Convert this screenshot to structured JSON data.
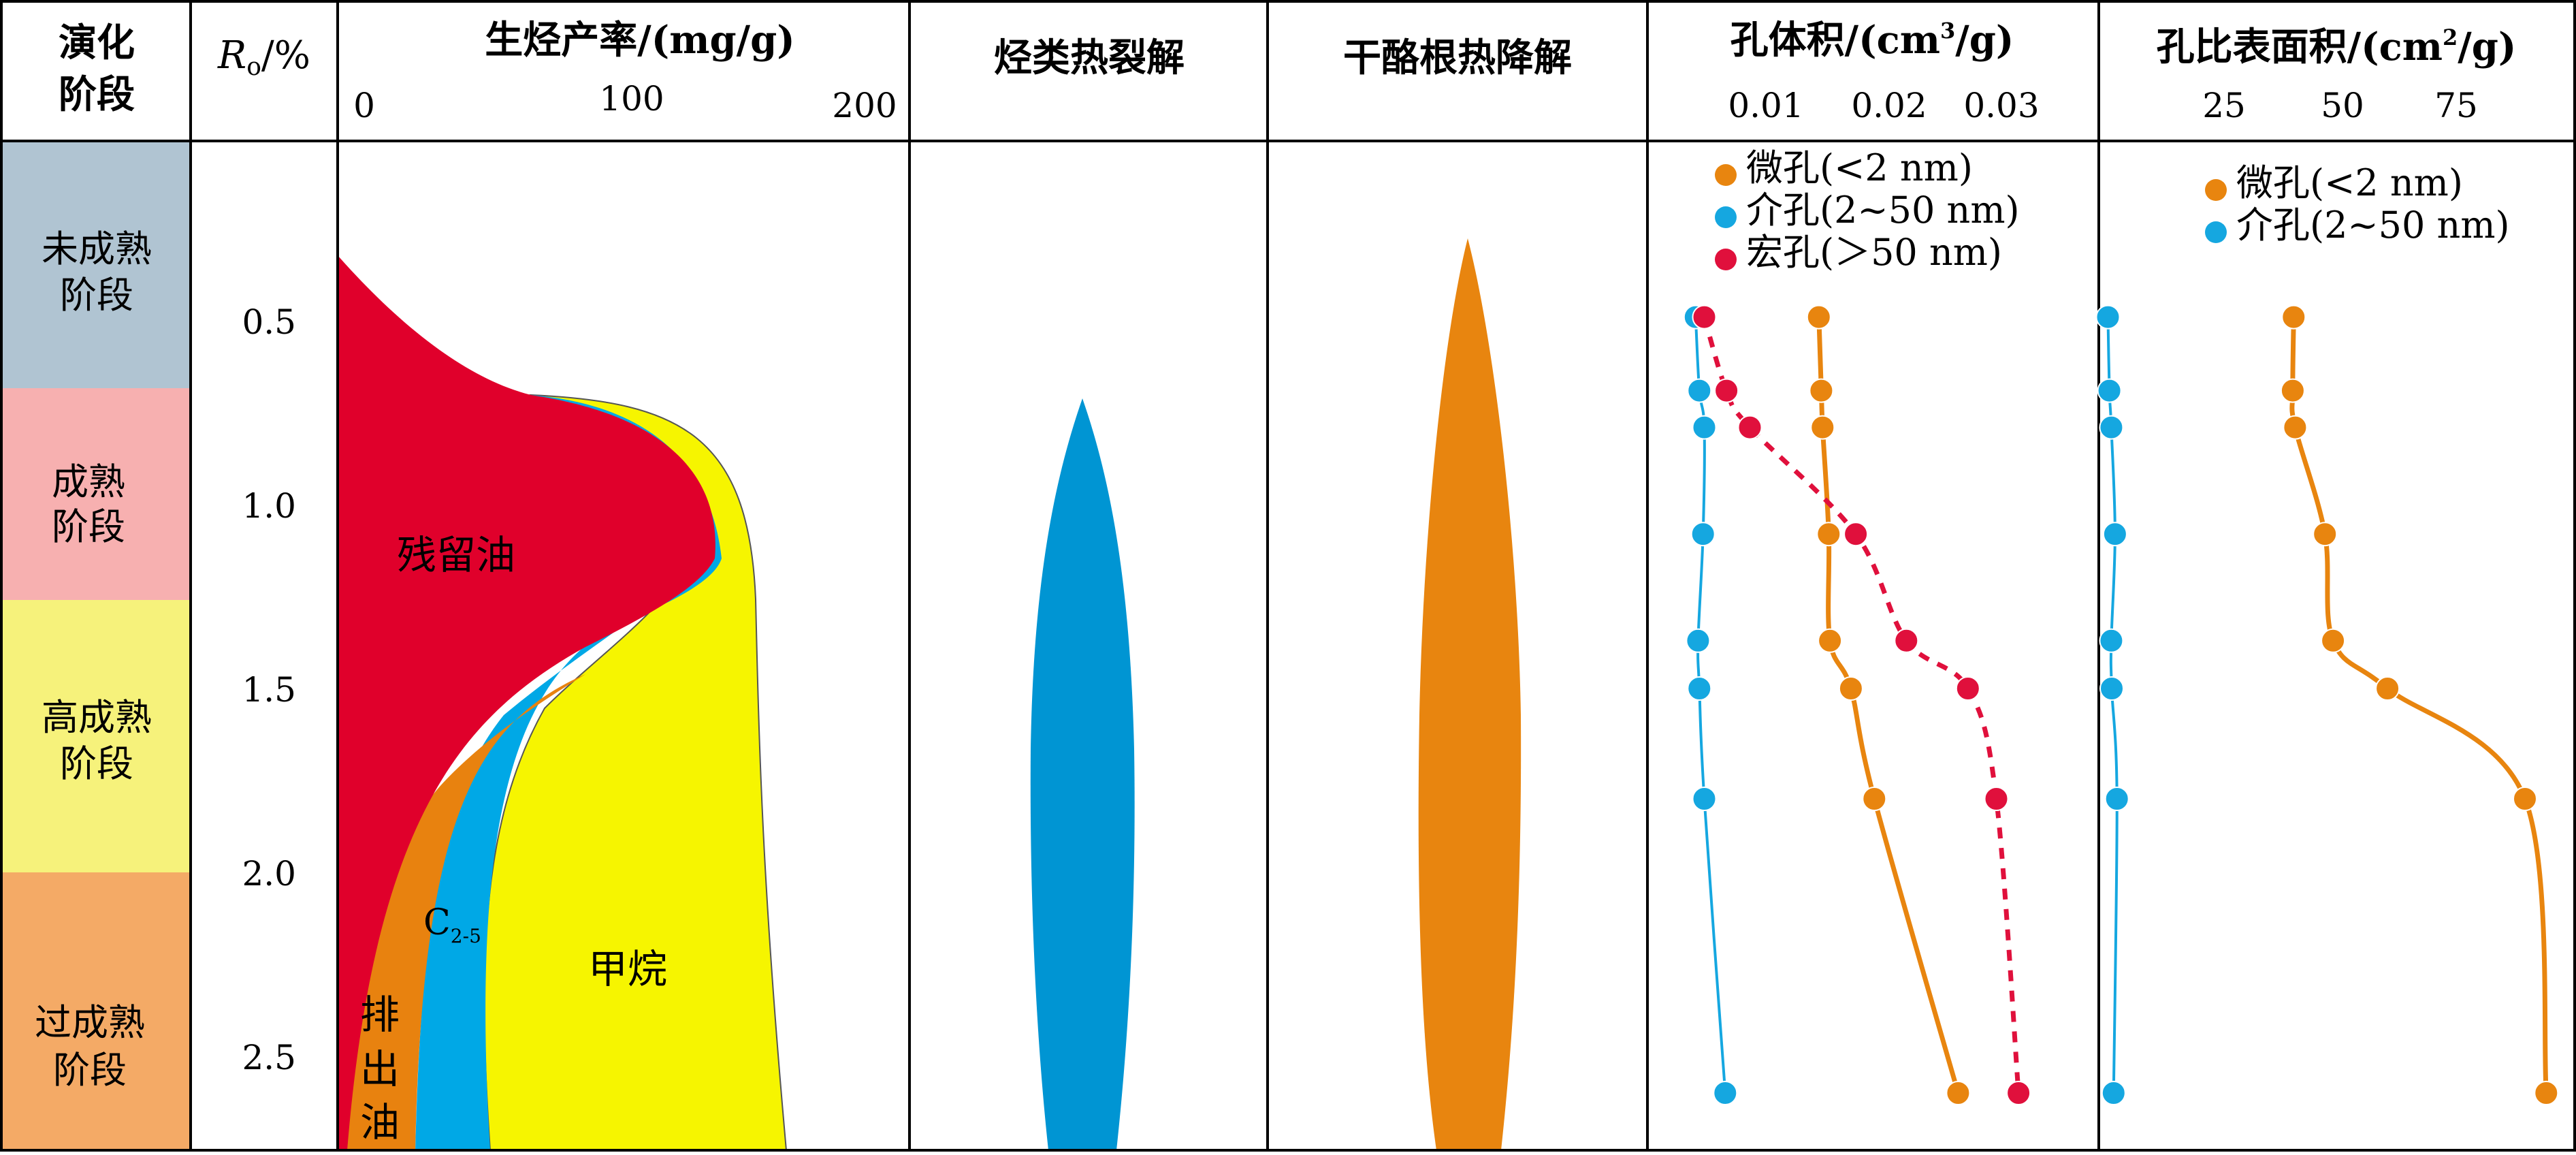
{
  "headers": {
    "stage": [
      "演化",
      "阶段"
    ],
    "ro": "R",
    "ro_sub": "o",
    "ro_unit": "/%",
    "yield": "生烃产率/(mg/g)",
    "cracking": "烃类热裂解",
    "kerogen": "干酪根热降解",
    "pore_volume": "孔体积/(cm",
    "pore_volume_sup": "3",
    "pore_volume_end": "/g)",
    "surface_area": "孔比表面积/(cm",
    "surface_area_sup": "2",
    "surface_area_end": "/g)"
  },
  "stages": [
    {
      "lines": [
        "未成熟",
        "阶段"
      ],
      "color": "#b0c4d2"
    },
    {
      "lines": [
        "成熟",
        "阶段"
      ],
      "color": "#f7b0b0"
    },
    {
      "lines": [
        "高成熟",
        "阶段"
      ],
      "color": "#f6f27b"
    },
    {
      "lines": [
        "过成熟",
        "阶段"
      ],
      "color": "#f4aa66"
    }
  ],
  "ro_ticks": [
    "0.5",
    "1.0",
    "1.5",
    "2.0",
    "2.5"
  ],
  "yield_ticks": [
    "0",
    "100",
    "200"
  ],
  "pv_ticks": [
    "0.01",
    "0.02",
    "0.03"
  ],
  "sa_ticks": [
    "25",
    "50",
    "75"
  ],
  "regions": {
    "residual_oil": "残留油",
    "methane": "甲烷",
    "c25": "C",
    "c25_sub": "2-5",
    "expelled": [
      "排",
      "出",
      "油"
    ]
  },
  "colors": {
    "residual_oil": "#e0002b",
    "methane": "#f6f500",
    "c25": "#00a8e6",
    "expelled": "#e8820f",
    "cracking": "#0095d3",
    "kerogen": "#e8850f",
    "micro": "#e8850f",
    "meso": "#15a7e0",
    "macro": "#e0103c"
  },
  "legend_pv": [
    "微孔(<2 nm)",
    "介孔(2~50 nm)",
    "宏孔(＞50 nm)"
  ],
  "legend_sa": [
    "微孔(<2 nm)",
    "介孔(2~50 nm)"
  ],
  "chart_data": [
    {
      "type": "line",
      "xlabel": "孔体积/(cm3/g)",
      "ylabel": "Ro/%",
      "ylim": [
        2.75,
        0.0
      ],
      "series": [
        {
          "name": "微孔(<2 nm)",
          "ro": [
            0.49,
            0.69,
            0.79,
            1.08,
            1.37,
            1.5,
            1.8,
            2.6
          ],
          "values": [
            0.0143,
            0.0145,
            0.0146,
            0.0151,
            0.0152,
            0.0169,
            0.0188,
            0.0256
          ]
        },
        {
          "name": "介孔(2~50 nm)",
          "ro": [
            0.49,
            0.69,
            0.79,
            1.08,
            1.37,
            1.5,
            1.8,
            2.6
          ],
          "values": [
            0.0043,
            0.0046,
            0.005,
            0.0049,
            0.0045,
            0.0046,
            0.005,
            0.0067
          ]
        },
        {
          "name": "宏孔(＞50 nm)",
          "ro": [
            0.49,
            0.69,
            0.79,
            1.08,
            1.37,
            1.5,
            1.8,
            2.6
          ],
          "values": [
            0.005,
            0.0068,
            0.0087,
            0.0173,
            0.0214,
            0.0264,
            0.0287,
            0.0305
          ]
        }
      ]
    },
    {
      "type": "line",
      "xlabel": "孔比表面积/(cm2/g)",
      "ylabel": "Ro/%",
      "ylim": [
        2.75,
        0.0
      ],
      "series": [
        {
          "name": "微孔(<2 nm)",
          "ro": [
            0.49,
            0.69,
            0.79,
            1.08,
            1.37,
            1.5,
            1.8,
            2.6
          ],
          "values": [
            39.7,
            39.5,
            40.0,
            46.3,
            48.0,
            59.5,
            88.5,
            93.0
          ]
        },
        {
          "name": "介孔(2~50 nm)",
          "ro": [
            0.49,
            0.69,
            0.79,
            1.08,
            1.37,
            1.5,
            1.8,
            2.6
          ],
          "values": [
            0.5,
            0.8,
            1.2,
            2.0,
            1.2,
            1.3,
            2.4,
            1.7
          ]
        }
      ]
    }
  ]
}
